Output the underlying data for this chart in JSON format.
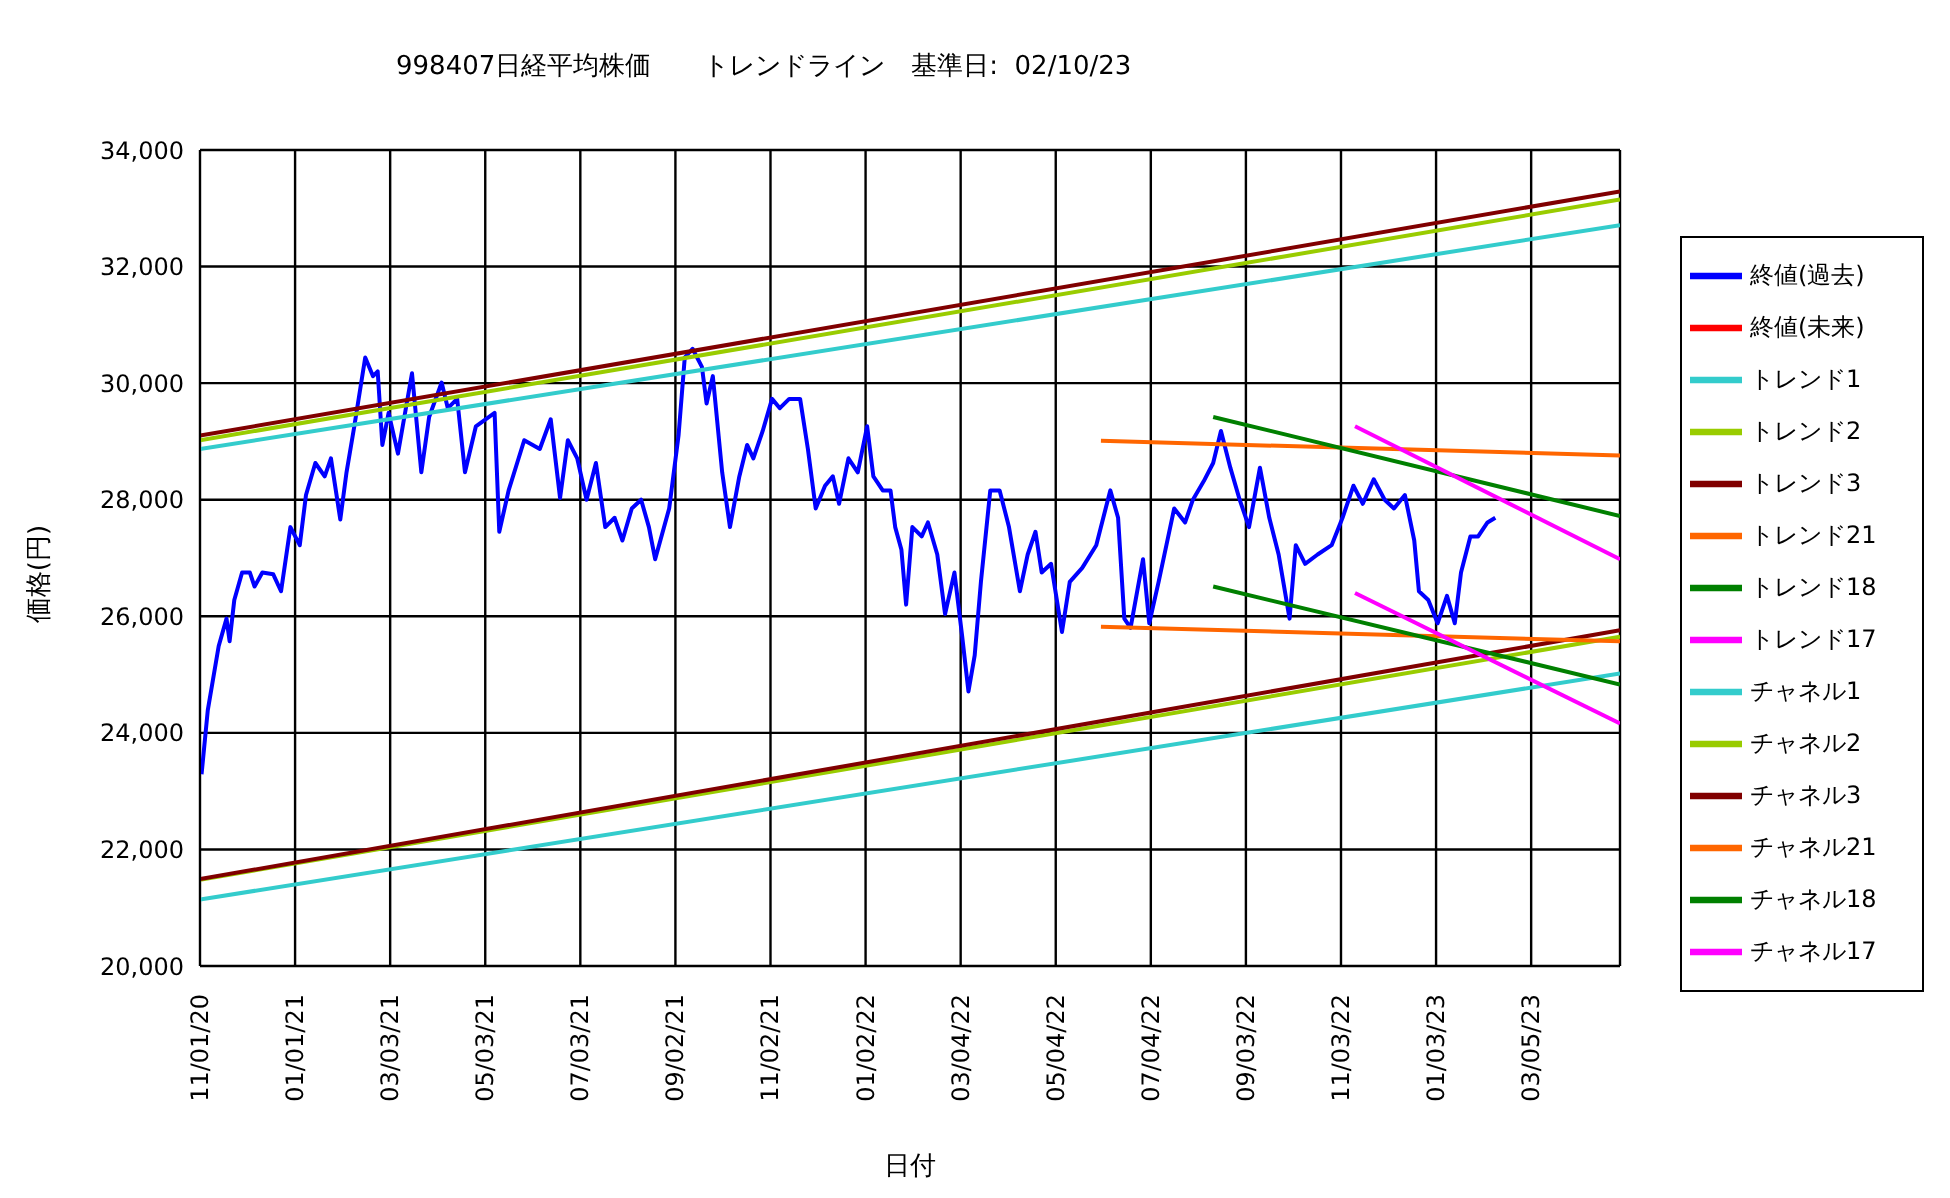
{
  "chart_data": {
    "type": "line",
    "title": "998407日経平均株価　　トレンドライン　基準日:  02/10/23",
    "xlabel": "日付",
    "ylabel": "価格(円)",
    "xlim": [
      "2020-11-01",
      "2023-05-01"
    ],
    "ylim": [
      20000,
      34000
    ],
    "xticks": [
      {
        "value": "2020-11-01",
        "label": "11/01/20"
      },
      {
        "value": "2021-01-01",
        "label": "01/01/21"
      },
      {
        "value": "2021-03-03",
        "label": "03/03/21"
      },
      {
        "value": "2021-05-03",
        "label": "05/03/21"
      },
      {
        "value": "2021-07-03",
        "label": "07/03/21"
      },
      {
        "value": "2021-09-02",
        "label": "09/02/21"
      },
      {
        "value": "2021-11-02",
        "label": "11/02/21"
      },
      {
        "value": "2022-01-02",
        "label": "01/02/22"
      },
      {
        "value": "2022-03-04",
        "label": "03/04/22"
      },
      {
        "value": "2022-05-04",
        "label": "05/04/22"
      },
      {
        "value": "2022-07-04",
        "label": "07/04/22"
      },
      {
        "value": "2022-09-03",
        "label": "09/03/22"
      },
      {
        "value": "2022-11-03",
        "label": "11/03/22"
      },
      {
        "value": "2023-01-03",
        "label": "01/03/23"
      },
      {
        "value": "2023-03-05",
        "label": "03/05/23"
      }
    ],
    "yticks": [
      {
        "value": 20000,
        "label": "20,000"
      },
      {
        "value": 22000,
        "label": "22,000"
      },
      {
        "value": 24000,
        "label": "24,000"
      },
      {
        "value": 26000,
        "label": "26,000"
      },
      {
        "value": 28000,
        "label": "28,000"
      },
      {
        "value": 30000,
        "label": "30,000"
      },
      {
        "value": 32000,
        "label": "32,000"
      },
      {
        "value": 34000,
        "label": "34,000"
      }
    ],
    "grid": true,
    "legend": "right",
    "marker": "none",
    "line_style": "solid",
    "series": [
      {
        "name": "終値(過去)",
        "color": "#0000ff",
        "x": [
          "2020-11-02",
          "2020-11-06",
          "2020-11-13",
          "2020-11-18",
          "2020-11-20",
          "2020-11-23",
          "2020-11-28",
          "2020-12-03",
          "2020-12-06",
          "2020-12-11",
          "2020-12-18",
          "2020-12-23",
          "2020-12-29",
          "2021-01-04",
          "2021-01-08",
          "2021-01-14",
          "2021-01-20",
          "2021-01-24",
          "2021-01-30",
          "2021-02-03",
          "2021-02-08",
          "2021-02-15",
          "2021-02-20",
          "2021-02-23",
          "2021-02-26",
          "2021-03-02",
          "2021-03-08",
          "2021-03-17",
          "2021-03-23",
          "2021-03-28",
          "2021-04-05",
          "2021-04-09",
          "2021-04-15",
          "2021-04-20",
          "2021-04-27",
          "2021-05-09",
          "2021-05-12",
          "2021-05-18",
          "2021-05-28",
          "2021-06-07",
          "2021-06-14",
          "2021-06-20",
          "2021-06-25",
          "2021-07-01",
          "2021-07-07",
          "2021-07-13",
          "2021-07-19",
          "2021-07-25",
          "2021-07-30",
          "2021-08-05",
          "2021-08-11",
          "2021-08-16",
          "2021-08-20",
          "2021-08-29",
          "2021-09-04",
          "2021-09-08",
          "2021-09-13",
          "2021-09-19",
          "2021-09-22",
          "2021-09-26",
          "2021-10-02",
          "2021-10-07",
          "2021-10-13",
          "2021-10-18",
          "2021-10-22",
          "2021-10-28",
          "2021-11-03",
          "2021-11-08",
          "2021-11-14",
          "2021-11-21",
          "2021-11-26",
          "2021-12-01",
          "2021-12-07",
          "2021-12-12",
          "2021-12-16",
          "2021-12-22",
          "2021-12-28",
          "2022-01-03",
          "2022-01-07",
          "2022-01-13",
          "2022-01-18",
          "2022-01-21",
          "2022-01-25",
          "2022-01-28",
          "2022-02-01",
          "2022-02-07",
          "2022-02-11",
          "2022-02-17",
          "2022-02-22",
          "2022-02-28",
          "2022-03-05",
          "2022-03-09",
          "2022-03-13",
          "2022-03-17",
          "2022-03-23",
          "2022-03-29",
          "2022-04-04",
          "2022-04-11",
          "2022-04-16",
          "2022-04-21",
          "2022-04-25",
          "2022-05-01",
          "2022-05-08",
          "2022-05-13",
          "2022-05-21",
          "2022-05-30",
          "2022-06-08",
          "2022-06-13",
          "2022-06-17",
          "2022-06-21",
          "2022-06-29",
          "2022-07-03",
          "2022-07-09",
          "2022-07-19",
          "2022-07-26",
          "2022-07-31",
          "2022-08-07",
          "2022-08-13",
          "2022-08-18",
          "2022-08-24",
          "2022-08-30",
          "2022-09-05",
          "2022-09-12",
          "2022-09-18",
          "2022-09-24",
          "2022-10-01",
          "2022-10-05",
          "2022-10-11",
          "2022-10-19",
          "2022-10-28",
          "2022-11-04",
          "2022-11-11",
          "2022-11-17",
          "2022-11-24",
          "2022-12-01",
          "2022-12-07",
          "2022-12-14",
          "2022-12-20",
          "2022-12-23",
          "2022-12-29",
          "2023-01-04",
          "2023-01-10",
          "2023-01-15",
          "2023-01-19",
          "2023-01-25",
          "2023-01-30",
          "2023-02-05",
          "2023-02-10"
        ],
        "values": [
          23290,
          24390,
          25490,
          25960,
          25570,
          26280,
          26750,
          26750,
          26510,
          26750,
          26720,
          26430,
          27530,
          27220,
          28080,
          28630,
          28400,
          28710,
          27660,
          28470,
          29260,
          30440,
          30120,
          30200,
          28940,
          29490,
          28790,
          30170,
          28470,
          29420,
          30010,
          29570,
          29730,
          28470,
          29260,
          29490,
          27450,
          28160,
          29020,
          28870,
          29380,
          28030,
          29020,
          28710,
          28000,
          28630,
          27530,
          27690,
          27300,
          27850,
          28000,
          27530,
          26980,
          27850,
          29100,
          30440,
          30590,
          30280,
          29650,
          30120,
          28470,
          27530,
          28400,
          28940,
          28710,
          29180,
          29730,
          29570,
          29730,
          29730,
          28870,
          27850,
          28240,
          28400,
          27930,
          28710,
          28470,
          29260,
          28400,
          28160,
          28160,
          27530,
          27140,
          26200,
          27530,
          27370,
          27610,
          27060,
          26040,
          26750,
          25650,
          24710,
          25330,
          26590,
          28160,
          28160,
          27530,
          26430,
          27060,
          27450,
          26750,
          26900,
          25730,
          26590,
          26830,
          27220,
          28160,
          27690,
          25960,
          25800,
          26980,
          25880,
          26590,
          27850,
          27610,
          28000,
          28320,
          28630,
          29180,
          28550,
          28000,
          27530,
          28550,
          27690,
          27060,
          25960,
          27220,
          26900,
          27060,
          27220,
          27690,
          28240,
          27930,
          28350,
          28000,
          27850,
          28080,
          27300,
          26430,
          26280,
          25880,
          26350,
          25880,
          26750,
          27370,
          27370,
          27610,
          27690
        ]
      },
      {
        "name": "終値(未来)",
        "color": "#ff0000"
      },
      {
        "name": "トレンド1",
        "color": "#33cccc",
        "x": [
          "2020-11-01",
          "2023-05-01"
        ],
        "values": [
          28870,
          32710
        ]
      },
      {
        "name": "トレンド2",
        "color": "#99cc00",
        "x": [
          "2020-11-01",
          "2023-05-01"
        ],
        "values": [
          29020,
          33150
        ]
      },
      {
        "name": "トレンド3",
        "color": "#800000",
        "x": [
          "2020-11-01",
          "2023-05-01"
        ],
        "values": [
          29100,
          33290
        ]
      },
      {
        "name": "トレンド21",
        "color": "#ff6600",
        "x": [
          "2022-06-02",
          "2023-05-01"
        ],
        "values": [
          29010,
          28760
        ]
      },
      {
        "name": "トレンド18",
        "color": "#008000",
        "x": [
          "2022-08-13",
          "2023-05-01"
        ],
        "values": [
          29420,
          27720
        ]
      },
      {
        "name": "トレンド17",
        "color": "#ff00ff",
        "x": [
          "2022-11-12",
          "2023-05-01"
        ],
        "values": [
          29260,
          26980
        ]
      },
      {
        "name": "チャネル1",
        "color": "#33cccc",
        "x": [
          "2020-11-01",
          "2023-05-01"
        ],
        "values": [
          21140,
          25020
        ]
      },
      {
        "name": "チャネル2",
        "color": "#99cc00",
        "x": [
          "2020-11-01",
          "2023-05-01"
        ],
        "values": [
          21480,
          25650
        ]
      },
      {
        "name": "チャネル3",
        "color": "#800000",
        "x": [
          "2020-11-01",
          "2023-05-01"
        ],
        "values": [
          21490,
          25760
        ]
      },
      {
        "name": "チャネル21",
        "color": "#ff6600",
        "x": [
          "2022-06-02",
          "2023-05-01"
        ],
        "values": [
          25820,
          25570
        ]
      },
      {
        "name": "チャネル18",
        "color": "#008000",
        "x": [
          "2022-08-13",
          "2023-05-01"
        ],
        "values": [
          26510,
          24830
        ]
      },
      {
        "name": "チャネル17",
        "color": "#ff00ff",
        "x": [
          "2022-11-12",
          "2023-05-01"
        ],
        "values": [
          26400,
          24160
        ]
      }
    ]
  }
}
